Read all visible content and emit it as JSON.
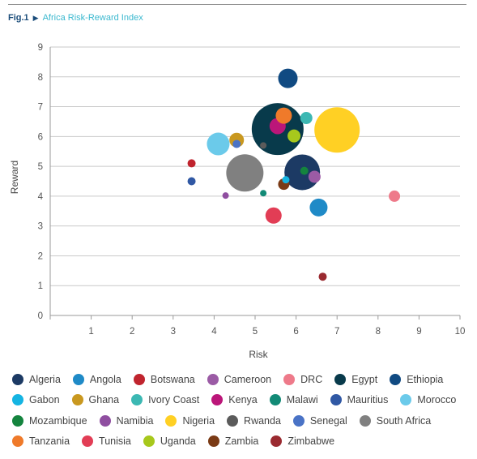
{
  "figure": {
    "label": "Fig.1",
    "title": "Africa Risk-Reward Index"
  },
  "chart_data": {
    "type": "scatter",
    "bubble": true,
    "title": "Africa Risk-Reward Index",
    "xlabel": "Risk",
    "ylabel": "Reward",
    "xlim": [
      0,
      10
    ],
    "ylim": [
      0,
      9
    ],
    "xticks": [
      "",
      "1",
      "2",
      "3",
      "4",
      "5",
      "6",
      "7",
      "8",
      "9",
      "10"
    ],
    "yticks": [
      "0",
      "1",
      "2",
      "3",
      "4",
      "5",
      "6",
      "7",
      "8",
      "9"
    ],
    "grid": "horizontal",
    "legend_position": "bottom",
    "points": [
      {
        "name": "Algeria",
        "x": 6.15,
        "y": 4.8,
        "size": 22,
        "color": "#1c3a64"
      },
      {
        "name": "Angola",
        "x": 6.55,
        "y": 3.62,
        "size": 11,
        "color": "#1f8ac7"
      },
      {
        "name": "Botswana",
        "x": 3.45,
        "y": 5.1,
        "size": 5,
        "color": "#c0242e"
      },
      {
        "name": "Cameroon",
        "x": 6.45,
        "y": 4.65,
        "size": 7.5,
        "color": "#9b5ba5"
      },
      {
        "name": "DRC",
        "x": 8.4,
        "y": 4.0,
        "size": 7,
        "color": "#ee7a8a"
      },
      {
        "name": "Egypt",
        "x": 5.55,
        "y": 6.25,
        "size": 32,
        "color": "#083a4b"
      },
      {
        "name": "Ethiopia",
        "x": 5.8,
        "y": 7.95,
        "size": 12,
        "color": "#104a82"
      },
      {
        "name": "Gabon",
        "x": 5.75,
        "y": 4.55,
        "size": 4.5,
        "color": "#15b4e2"
      },
      {
        "name": "Ghana",
        "x": 4.55,
        "y": 5.88,
        "size": 9,
        "color": "#c9981f"
      },
      {
        "name": "Ivory Coast",
        "x": 6.25,
        "y": 6.62,
        "size": 7.5,
        "color": "#3cb8b3"
      },
      {
        "name": "Kenya",
        "x": 5.55,
        "y": 6.35,
        "size": 10,
        "color": "#bb1679"
      },
      {
        "name": "Malawi",
        "x": 5.2,
        "y": 4.1,
        "size": 4,
        "color": "#128a76"
      },
      {
        "name": "Mauritius",
        "x": 3.45,
        "y": 4.5,
        "size": 5,
        "color": "#3058a4"
      },
      {
        "name": "Morocco",
        "x": 4.1,
        "y": 5.75,
        "size": 14,
        "color": "#6bcaea"
      },
      {
        "name": "Mozambique",
        "x": 6.2,
        "y": 4.85,
        "size": 5,
        "color": "#14843e"
      },
      {
        "name": "Namibia",
        "x": 4.28,
        "y": 4.02,
        "size": 4,
        "color": "#8f4ea0"
      },
      {
        "name": "Nigeria",
        "x": 7.0,
        "y": 6.22,
        "size": 28,
        "color": "#ffd024"
      },
      {
        "name": "Rwanda",
        "x": 5.2,
        "y": 5.7,
        "size": 4,
        "color": "#5b5b5b"
      },
      {
        "name": "Senegal",
        "x": 4.55,
        "y": 5.75,
        "size": 5,
        "color": "#4a73c6"
      },
      {
        "name": "South Africa",
        "x": 4.75,
        "y": 4.78,
        "size": 23,
        "color": "#808080"
      },
      {
        "name": "Tanzania",
        "x": 5.7,
        "y": 6.7,
        "size": 10,
        "color": "#ef7a2a"
      },
      {
        "name": "Tunisia",
        "x": 5.45,
        "y": 3.35,
        "size": 10,
        "color": "#e23d55"
      },
      {
        "name": "Uganda",
        "x": 5.95,
        "y": 6.02,
        "size": 8,
        "color": "#a7c81c"
      },
      {
        "name": "Zambia",
        "x": 5.7,
        "y": 4.4,
        "size": 7,
        "color": "#7a3a15"
      },
      {
        "name": "Zimbabwe",
        "x": 6.65,
        "y": 1.3,
        "size": 5,
        "color": "#9a2a30"
      }
    ],
    "legend_rows": [
      [
        "Algeria",
        "Angola",
        "Botswana",
        "Cameroon",
        "DRC",
        "Egypt",
        "Ethiopia"
      ],
      [
        "Gabon",
        "Ghana",
        "Ivory Coast",
        "Kenya",
        "Malawi",
        "Mauritius",
        "Morocco"
      ],
      [
        "Mozambique",
        "Namibia",
        "Nigeria",
        "Rwanda",
        "Senegal",
        "South Africa"
      ],
      [
        "Tanzania",
        "Tunisia",
        "Uganda",
        "Zambia",
        "Zimbabwe"
      ]
    ]
  }
}
